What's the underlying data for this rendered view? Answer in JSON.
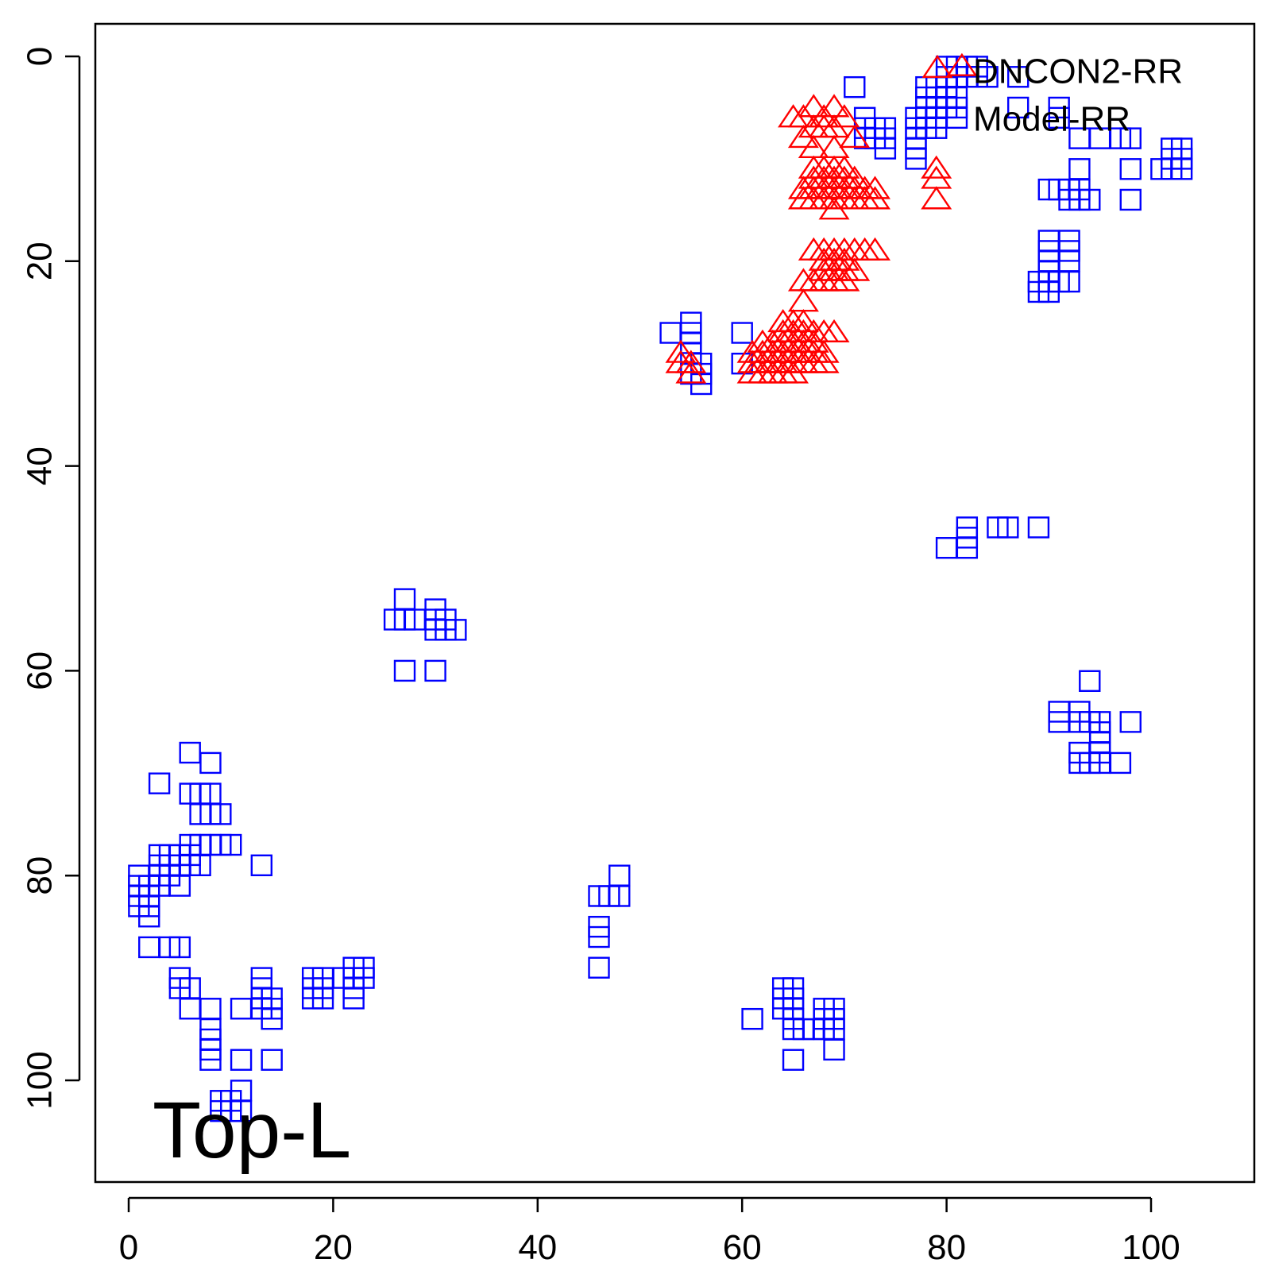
{
  "chart_data": {
    "type": "scatter",
    "title": "",
    "xlabel": "",
    "ylabel": "",
    "xlim": [
      -3,
      110
    ],
    "ylim": [
      -3,
      110
    ],
    "y_reversed": true,
    "grid": false,
    "x_ticks": [
      0,
      20,
      40,
      60,
      80,
      100
    ],
    "y_ticks": [
      0,
      20,
      40,
      60,
      80,
      100
    ],
    "x_tick_labels": [
      "0",
      "20",
      "40",
      "60",
      "80",
      "100"
    ],
    "y_tick_labels": [
      "0",
      "20",
      "40",
      "60",
      "80",
      "100"
    ],
    "legend": {
      "position": "top-right",
      "show_marker": "triangle"
    },
    "annotation": "Top-L",
    "series": [
      {
        "name": "DNCON2-RR",
        "marker": "triangle",
        "color": "#ff0000",
        "points": [
          [
            65,
            6
          ],
          [
            66,
            6
          ],
          [
            67,
            5
          ],
          [
            68,
            6
          ],
          [
            69,
            5
          ],
          [
            67,
            7
          ],
          [
            68,
            7
          ],
          [
            69,
            7
          ],
          [
            70,
            6
          ],
          [
            71,
            8
          ],
          [
            66,
            8
          ],
          [
            67,
            9
          ],
          [
            69,
            9
          ],
          [
            67,
            11
          ],
          [
            68,
            11
          ],
          [
            69,
            11
          ],
          [
            70,
            11
          ],
          [
            67,
            12
          ],
          [
            68,
            12
          ],
          [
            69,
            12
          ],
          [
            70,
            12
          ],
          [
            71,
            12
          ],
          [
            66,
            13
          ],
          [
            67,
            13
          ],
          [
            68,
            13
          ],
          [
            69,
            13
          ],
          [
            70,
            13
          ],
          [
            71,
            13
          ],
          [
            72,
            13
          ],
          [
            73,
            13
          ],
          [
            66,
            14
          ],
          [
            67,
            14
          ],
          [
            68,
            14
          ],
          [
            69,
            14
          ],
          [
            70,
            14
          ],
          [
            71,
            14
          ],
          [
            72,
            14
          ],
          [
            73,
            14
          ],
          [
            69,
            15
          ],
          [
            81.5,
            1
          ],
          [
            79,
            11
          ],
          [
            79,
            12
          ],
          [
            79,
            14
          ],
          [
            67,
            19
          ],
          [
            68,
            19
          ],
          [
            69,
            19
          ],
          [
            70,
            19
          ],
          [
            71,
            19
          ],
          [
            72,
            19
          ],
          [
            73,
            19
          ],
          [
            68,
            20
          ],
          [
            69,
            20
          ],
          [
            70,
            20
          ],
          [
            68,
            21
          ],
          [
            69,
            21
          ],
          [
            70,
            21
          ],
          [
            71,
            21
          ],
          [
            66,
            22
          ],
          [
            67,
            22
          ],
          [
            68,
            22
          ],
          [
            69,
            22
          ],
          [
            70,
            22
          ],
          [
            66,
            24
          ],
          [
            64,
            26
          ],
          [
            65,
            26
          ],
          [
            66,
            26
          ],
          [
            64,
            27
          ],
          [
            65,
            27
          ],
          [
            66,
            27
          ],
          [
            67,
            27
          ],
          [
            68,
            27
          ],
          [
            69,
            27
          ],
          [
            62,
            28
          ],
          [
            63,
            28
          ],
          [
            64,
            28
          ],
          [
            65,
            28
          ],
          [
            66,
            28
          ],
          [
            67,
            28
          ],
          [
            54,
            29
          ],
          [
            61,
            29
          ],
          [
            62,
            29
          ],
          [
            63,
            29
          ],
          [
            64,
            29
          ],
          [
            65,
            29
          ],
          [
            66,
            29
          ],
          [
            67,
            29
          ],
          [
            68,
            29
          ],
          [
            54,
            30
          ],
          [
            55,
            30
          ],
          [
            61,
            30
          ],
          [
            62,
            30
          ],
          [
            63,
            30
          ],
          [
            64,
            30
          ],
          [
            65,
            30
          ],
          [
            66,
            30
          ],
          [
            67,
            30
          ],
          [
            68,
            30
          ],
          [
            55,
            31
          ],
          [
            61,
            31
          ],
          [
            62,
            31
          ],
          [
            63,
            31
          ],
          [
            64,
            31
          ],
          [
            65,
            31
          ]
        ]
      },
      {
        "name": "Model-RR",
        "marker": "square",
        "color": "#0000ff",
        "points": [
          [
            80,
            1
          ],
          [
            81,
            1
          ],
          [
            82,
            1
          ],
          [
            83,
            1
          ],
          [
            80,
            2
          ],
          [
            81,
            2
          ],
          [
            82,
            2
          ],
          [
            83,
            2
          ],
          [
            84,
            2
          ],
          [
            87,
            2
          ],
          [
            78,
            3
          ],
          [
            79,
            3
          ],
          [
            80,
            3
          ],
          [
            71,
            3
          ],
          [
            78,
            4
          ],
          [
            79,
            4
          ],
          [
            80,
            4
          ],
          [
            81,
            4
          ],
          [
            78,
            5
          ],
          [
            79,
            5
          ],
          [
            80,
            5
          ],
          [
            81,
            5
          ],
          [
            87,
            5
          ],
          [
            91,
            5
          ],
          [
            72,
            6
          ],
          [
            77,
            6
          ],
          [
            78,
            6
          ],
          [
            79,
            6
          ],
          [
            81,
            6
          ],
          [
            91,
            6
          ],
          [
            72,
            7
          ],
          [
            73,
            7
          ],
          [
            74,
            7
          ],
          [
            77,
            7
          ],
          [
            78,
            7
          ],
          [
            79,
            7
          ],
          [
            72,
            8
          ],
          [
            73,
            8
          ],
          [
            74,
            8
          ],
          [
            77,
            8
          ],
          [
            93,
            8
          ],
          [
            95,
            8
          ],
          [
            97,
            8
          ],
          [
            98,
            8
          ],
          [
            74,
            9
          ],
          [
            77,
            9
          ],
          [
            77,
            10
          ],
          [
            102,
            9
          ],
          [
            103,
            9
          ],
          [
            102,
            10
          ],
          [
            103,
            10
          ],
          [
            93,
            11
          ],
          [
            98,
            11
          ],
          [
            101,
            11
          ],
          [
            102,
            11
          ],
          [
            103,
            11
          ],
          [
            90,
            13
          ],
          [
            91,
            13
          ],
          [
            92,
            13
          ],
          [
            93,
            13
          ],
          [
            92,
            14
          ],
          [
            93,
            14
          ],
          [
            94,
            14
          ],
          [
            98,
            14
          ],
          [
            90,
            18
          ],
          [
            92,
            18
          ],
          [
            90,
            19
          ],
          [
            92,
            19
          ],
          [
            90,
            20
          ],
          [
            92,
            20
          ],
          [
            90,
            21
          ],
          [
            89,
            22
          ],
          [
            90,
            22
          ],
          [
            91,
            22
          ],
          [
            92,
            22
          ],
          [
            89,
            23
          ],
          [
            90,
            23
          ],
          [
            53,
            27
          ],
          [
            55,
            26
          ],
          [
            55,
            27
          ],
          [
            55,
            28
          ],
          [
            55,
            29
          ],
          [
            60,
            27
          ],
          [
            56,
            30
          ],
          [
            56,
            31
          ],
          [
            60,
            30
          ],
          [
            55,
            31
          ],
          [
            56,
            32
          ],
          [
            80,
            48
          ],
          [
            82,
            46
          ],
          [
            82,
            47
          ],
          [
            82,
            48
          ],
          [
            85,
            46
          ],
          [
            86,
            46
          ],
          [
            89,
            46
          ],
          [
            27,
            53
          ],
          [
            30,
            54
          ],
          [
            26,
            55
          ],
          [
            27,
            55
          ],
          [
            28,
            55
          ],
          [
            30,
            55
          ],
          [
            31,
            55
          ],
          [
            30,
            56
          ],
          [
            31,
            56
          ],
          [
            32,
            56
          ],
          [
            27,
            60
          ],
          [
            30,
            60
          ],
          [
            94,
            61
          ],
          [
            91,
            64
          ],
          [
            93,
            64
          ],
          [
            91,
            65
          ],
          [
            93,
            65
          ],
          [
            94,
            65
          ],
          [
            95,
            65
          ],
          [
            98,
            65
          ],
          [
            95,
            66
          ],
          [
            95,
            67
          ],
          [
            93,
            68
          ],
          [
            95,
            68
          ],
          [
            93,
            69
          ],
          [
            94,
            69
          ],
          [
            95,
            69
          ],
          [
            97,
            69
          ],
          [
            6,
            68
          ],
          [
            8,
            69
          ],
          [
            3,
            71
          ],
          [
            6,
            72
          ],
          [
            7,
            72
          ],
          [
            8,
            72
          ],
          [
            7,
            74
          ],
          [
            8,
            74
          ],
          [
            9,
            74
          ],
          [
            6,
            77
          ],
          [
            7,
            77
          ],
          [
            8,
            77
          ],
          [
            9,
            77
          ],
          [
            10,
            77
          ],
          [
            3,
            78
          ],
          [
            4,
            78
          ],
          [
            5,
            78
          ],
          [
            6,
            78
          ],
          [
            3,
            79
          ],
          [
            4,
            79
          ],
          [
            5,
            79
          ],
          [
            6,
            79
          ],
          [
            7,
            79
          ],
          [
            13,
            79
          ],
          [
            1,
            80
          ],
          [
            3,
            80
          ],
          [
            4,
            80
          ],
          [
            1,
            81
          ],
          [
            2,
            81
          ],
          [
            3,
            81
          ],
          [
            5,
            81
          ],
          [
            1,
            82
          ],
          [
            2,
            82
          ],
          [
            1,
            83
          ],
          [
            2,
            83
          ],
          [
            2,
            84
          ],
          [
            2,
            87
          ],
          [
            4,
            87
          ],
          [
            5,
            87
          ],
          [
            46,
            82
          ],
          [
            47,
            82
          ],
          [
            48,
            82
          ],
          [
            48,
            80
          ],
          [
            46,
            85
          ],
          [
            46,
            86
          ],
          [
            46,
            89
          ],
          [
            5,
            90
          ],
          [
            5,
            91
          ],
          [
            6,
            91
          ],
          [
            13,
            90
          ],
          [
            13,
            91
          ],
          [
            13,
            92
          ],
          [
            14,
            92
          ],
          [
            18,
            90
          ],
          [
            19,
            90
          ],
          [
            18,
            91
          ],
          [
            19,
            91
          ],
          [
            18,
            92
          ],
          [
            19,
            92
          ],
          [
            21,
            90
          ],
          [
            22,
            89
          ],
          [
            23,
            89
          ],
          [
            22,
            90
          ],
          [
            23,
            90
          ],
          [
            22,
            91
          ],
          [
            22,
            92
          ],
          [
            6,
            93
          ],
          [
            8,
            93
          ],
          [
            11,
            93
          ],
          [
            13,
            93
          ],
          [
            14,
            93
          ],
          [
            14,
            94
          ],
          [
            8,
            95
          ],
          [
            8,
            96
          ],
          [
            8,
            97
          ],
          [
            8,
            98
          ],
          [
            11,
            98
          ],
          [
            14,
            98
          ],
          [
            9,
            102
          ],
          [
            10,
            102
          ],
          [
            9,
            103
          ],
          [
            10,
            103
          ],
          [
            11,
            101
          ],
          [
            11,
            103
          ],
          [
            64,
            91
          ],
          [
            65,
            91
          ],
          [
            64,
            92
          ],
          [
            65,
            92
          ],
          [
            64,
            93
          ],
          [
            65,
            93
          ],
          [
            61,
            94
          ],
          [
            65,
            94
          ],
          [
            65,
            95
          ],
          [
            66,
            95
          ],
          [
            67,
            95
          ],
          [
            68,
            93
          ],
          [
            69,
            93
          ],
          [
            68,
            94
          ],
          [
            69,
            94
          ],
          [
            68,
            95
          ],
          [
            69,
            95
          ],
          [
            69,
            97
          ],
          [
            65,
            98
          ]
        ]
      }
    ]
  }
}
